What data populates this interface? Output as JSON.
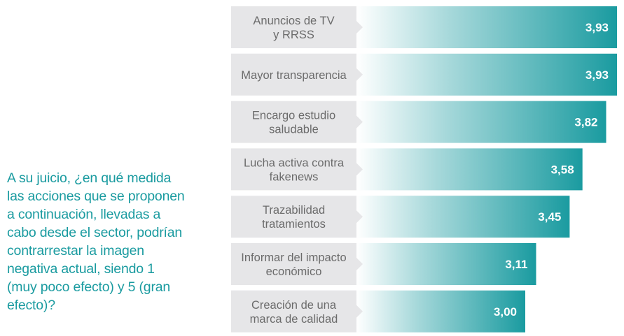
{
  "question": [
    "A su juicio, ¿en qué medida",
    "las acciones que se proponen",
    "a continuación, llevadas a",
    "cabo desde el sector, podrían",
    "contrarrestar la imagen",
    "negativa actual, siendo 1",
    "(muy poco efecto) y 5 (gran",
    "efecto)?"
  ],
  "colors": {
    "label_box": "#e6e6e8",
    "bar_start": "#ffffff",
    "bar_end": "#1a9ba0",
    "question_text": "#1a9ba0",
    "category_text": "#6b6b6b",
    "value_text": "#ffffff"
  },
  "chart_data": {
    "type": "bar",
    "orientation": "horizontal",
    "categories": [
      [
        "Anuncios de TV",
        "y RRSS"
      ],
      [
        "Mayor transparencia"
      ],
      [
        "Encargo estudio",
        "saludable"
      ],
      [
        "Lucha activa contra",
        "fakenews"
      ],
      [
        "Trazabilidad",
        "tratamientos"
      ],
      [
        "Informar del impacto",
        "económico"
      ],
      [
        "Creación de una",
        "marca de calidad"
      ]
    ],
    "values": [
      3.93,
      3.93,
      3.82,
      3.58,
      3.45,
      3.11,
      3.0
    ],
    "value_labels": [
      "3,93",
      "3,93",
      "3,82",
      "3,58",
      "3,45",
      "3,11",
      "3,00"
    ],
    "xlim": [
      1,
      5
    ],
    "grid": false,
    "legend": "none"
  }
}
